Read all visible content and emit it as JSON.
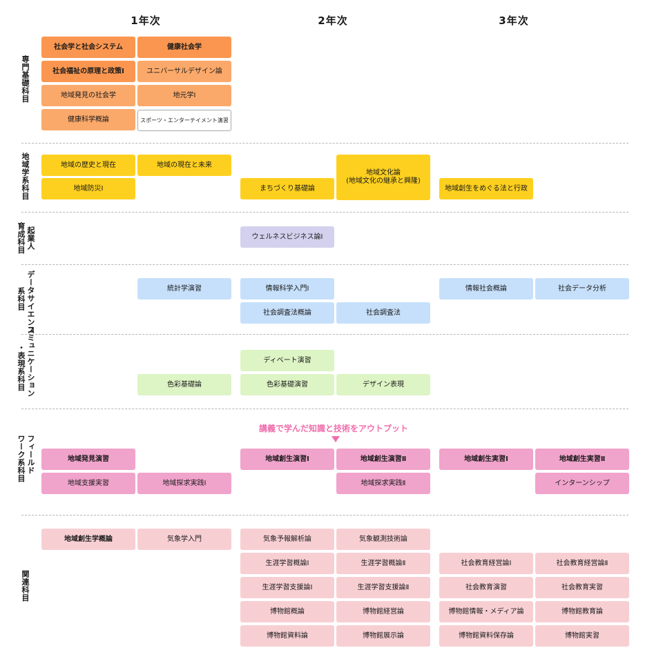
{
  "years": [
    "1年次",
    "2年次",
    "3年次"
  ],
  "categories": {
    "senmon": "専門基礎科目",
    "chiikigaku": "地域学系科目",
    "kigyoujin_1": "起業人",
    "kigyoujin_2": "育成科目",
    "datascience_1": "データサイエンス",
    "datascience_2": "系科目",
    "comm_1": "コミュニケーション",
    "comm_2": "・表現系科目",
    "field_1": "フィールド",
    "field_2": "ワーク系科目",
    "kanren": "関連科目"
  },
  "courses": {
    "senmon": {
      "shakaigaku_system": "社会学と社会システム",
      "kenkou_shakaigaku": "健康社会学",
      "shakaifukushi": "社会福祉の原理と政策Ⅰ",
      "universal_design": "ユニバーサルデザイン論",
      "chiiki_hakken_shakaigaku": "地域発見の社会学",
      "jimotogaku": "地元学Ⅰ",
      "kenkou_kagaku": "健康科学概論",
      "sports_entertainment": "スポーツ・エンターテイメント演習"
    },
    "chiikigaku": {
      "rekishi_genzai": "地域の歴史と現在",
      "genzai_mirai": "地域の現在と未来",
      "bousai": "地域防災Ⅰ",
      "machizukuri": "まちづくり基礎論",
      "bunka": "地域文化論\n(地域文化の継承と興隆)",
      "hou_gyousei": "地域創生をめぐる法と行政"
    },
    "kigyoujin": {
      "wellness": "ウェルネスビジネス論Ⅰ"
    },
    "datascience": {
      "toukei": "統計学演習",
      "jouhou_nyumon": "情報科学入門Ⅰ",
      "chousahou_gairon": "社会調査法概論",
      "chousahou": "社会調査法",
      "jouhou_shakai": "情報社会概論",
      "data_bunseki": "社会データ分析"
    },
    "comm": {
      "debate": "ディベート演習",
      "shikisai_kiso": "色彩基礎論",
      "shikisai_enshu": "色彩基礎演習",
      "design": "デザイン表現"
    },
    "field": {
      "hakken_enshu": "地域発見演習",
      "shien_jisshu": "地域支援実習",
      "tankyu_1": "地域探求実践Ⅰ",
      "sousei_enshu_1": "地域創生演習Ⅰ",
      "sousei_enshu_2": "地域創生演習Ⅱ",
      "tankyu_2": "地域探求実践Ⅱ",
      "sousei_jisshu_1": "地域創生実習Ⅰ",
      "sousei_jisshu_2": "地域創生実習Ⅱ",
      "internship": "インターンシップ"
    },
    "kanren": {
      "sousei_gairon": "地域創生学概論",
      "kishougaku": "気象学入門",
      "kishou_yohou": "気象予報解析論",
      "kishou_kansoku": "気象観測技術論",
      "shougai_gairon_1": "生涯学習概論Ⅰ",
      "shougai_gairon_2": "生涯学習概論Ⅱ",
      "shakai_keiei_1": "社会教育経営論Ⅰ",
      "shakai_keiei_2": "社会教育経営論Ⅱ",
      "shougai_shien_1": "生涯学習支援論Ⅰ",
      "shougai_shien_2": "生涯学習支援論Ⅱ",
      "shakai_enshu": "社会教育演習",
      "shakai_jisshu": "社会教育実習",
      "hakubutsukan_gairon": "博物館概論",
      "hakubutsukan_keiei": "博物館経営論",
      "hakubutsukan_media": "博物館情報・メディア論",
      "hakubutsukan_kyouiku": "博物館教育論",
      "hakubutsukan_shiryou": "博物館資料論",
      "hakubutsukan_tenji": "博物館展示論",
      "hakubutsukan_hozon": "博物館資料保存論",
      "hakubutsukan_jisshu": "博物館実習"
    }
  },
  "callout": "講義で学んだ知識と技術をアウトプット",
  "colors": {
    "senmon_dark": "#fa9650",
    "senmon_light": "#fba96a",
    "chiikigaku": "#fdd01f",
    "kigyoujin": "#d3d1ee",
    "datascience": "#c6e0fb",
    "comm": "#ddf4c5",
    "field": "#f0a3cb",
    "kanren": "#f7cfd3",
    "callout": "#ef6fad"
  }
}
